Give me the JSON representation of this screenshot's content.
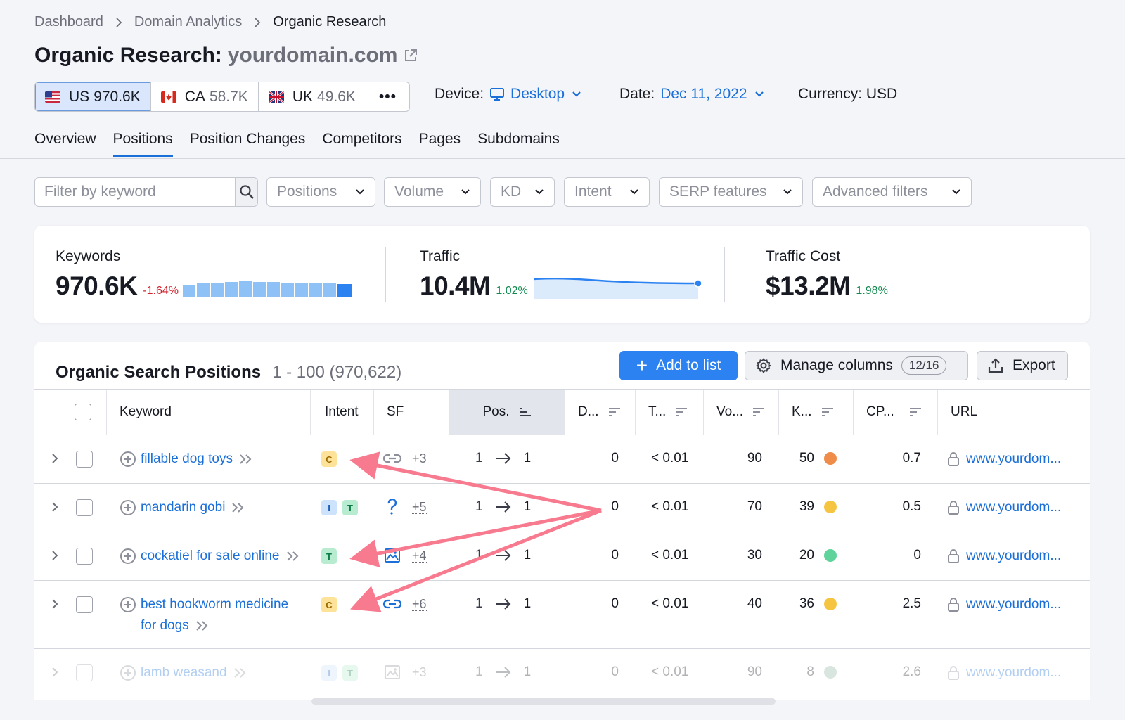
{
  "breadcrumb": [
    "Dashboard",
    "Domain Analytics",
    "Organic Research"
  ],
  "title": {
    "prefix": "Organic Research:",
    "domain": "yourdomain.com"
  },
  "databases": [
    {
      "code": "US",
      "value": "970.6K",
      "active": true
    },
    {
      "code": "CA",
      "value": "58.7K",
      "active": false
    },
    {
      "code": "UK",
      "value": "49.6K",
      "active": false
    }
  ],
  "more_label": "•••",
  "device": {
    "label": "Device:",
    "value": "Desktop"
  },
  "date": {
    "label": "Date:",
    "value": "Dec 11, 2022"
  },
  "currency": "Currency: USD",
  "tabs": [
    "Overview",
    "Positions",
    "Position Changes",
    "Competitors",
    "Pages",
    "Subdomains"
  ],
  "active_tab": "Positions",
  "filters": {
    "keyword_placeholder": "Filter by keyword",
    "dropdowns": [
      "Positions",
      "Volume",
      "KD",
      "Intent",
      "SERP features",
      "Advanced filters"
    ]
  },
  "summary": {
    "keywords": {
      "label": "Keywords",
      "value": "970.6K",
      "delta": "-1.64%"
    },
    "traffic": {
      "label": "Traffic",
      "value": "10.4M",
      "delta": "1.02%"
    },
    "traffic_cost": {
      "label": "Traffic Cost",
      "value": "$13.2M",
      "delta": "1.98%"
    }
  },
  "table": {
    "title": "Organic Search Positions",
    "range": "1 - 100 (970,622)",
    "add_to_list": "Add to list",
    "manage_columns": "Manage columns",
    "columns_count": "12/16",
    "export": "Export",
    "columns": [
      "Keyword",
      "Intent",
      "SF",
      "Pos.",
      "D...",
      "T...",
      "Vo...",
      "K...",
      "CP...",
      "URL"
    ],
    "rows": [
      {
        "keyword_lines": [
          "fillable dog toys"
        ],
        "intent": [
          "C"
        ],
        "sf_icon": "link-icon",
        "sf_extra": "+3",
        "pos_from": "1",
        "pos_to": "1",
        "diff": "0",
        "traffic": "< 0.01",
        "volume": "90",
        "kd": "50",
        "kd_color": "#ef8c4a",
        "cpc": "0.7",
        "url": "www.yourdom..."
      },
      {
        "keyword_lines": [
          "mandarin gobi"
        ],
        "intent": [
          "I",
          "T"
        ],
        "sf_icon": "question-icon",
        "sf_extra": "+5",
        "pos_from": "1",
        "pos_to": "1",
        "diff": "0",
        "traffic": "< 0.01",
        "volume": "70",
        "kd": "39",
        "kd_color": "#f5c542",
        "cpc": "0.5",
        "url": "www.yourdom..."
      },
      {
        "keyword_lines": [
          "cockatiel for sale online"
        ],
        "intent": [
          "T"
        ],
        "sf_icon": "image-pack-icon",
        "sf_extra": "+4",
        "pos_from": "1",
        "pos_to": "1",
        "diff": "0",
        "traffic": "< 0.01",
        "volume": "30",
        "kd": "20",
        "kd_color": "#5fd39a",
        "cpc": "0",
        "url": "www.yourdom..."
      },
      {
        "keyword_lines": [
          "best hookworm medicine",
          "for dogs"
        ],
        "intent": [
          "C"
        ],
        "sf_icon": "link-icon",
        "sf_extra": "+6",
        "pos_from": "1",
        "pos_to": "1",
        "diff": "0",
        "traffic": "< 0.01",
        "volume": "40",
        "kd": "36",
        "kd_color": "#f5c542",
        "cpc": "2.5",
        "url": "www.yourdom..."
      },
      {
        "keyword_lines": [
          "lamb weasand"
        ],
        "intent": [
          "I",
          "T"
        ],
        "sf_icon": "image-pack-icon",
        "sf_extra": "+3",
        "pos_from": "1",
        "pos_to": "1",
        "diff": "0",
        "traffic": "< 0.01",
        "volume": "90",
        "kd": "8",
        "kd_color": "#8fb5a3",
        "cpc": "2.6",
        "url": "www.yourdom..."
      }
    ]
  },
  "colors": {
    "accent": "#1a6fd8",
    "primary_button": "#2c82f0",
    "annotation_arrow": "#f77a8f"
  }
}
